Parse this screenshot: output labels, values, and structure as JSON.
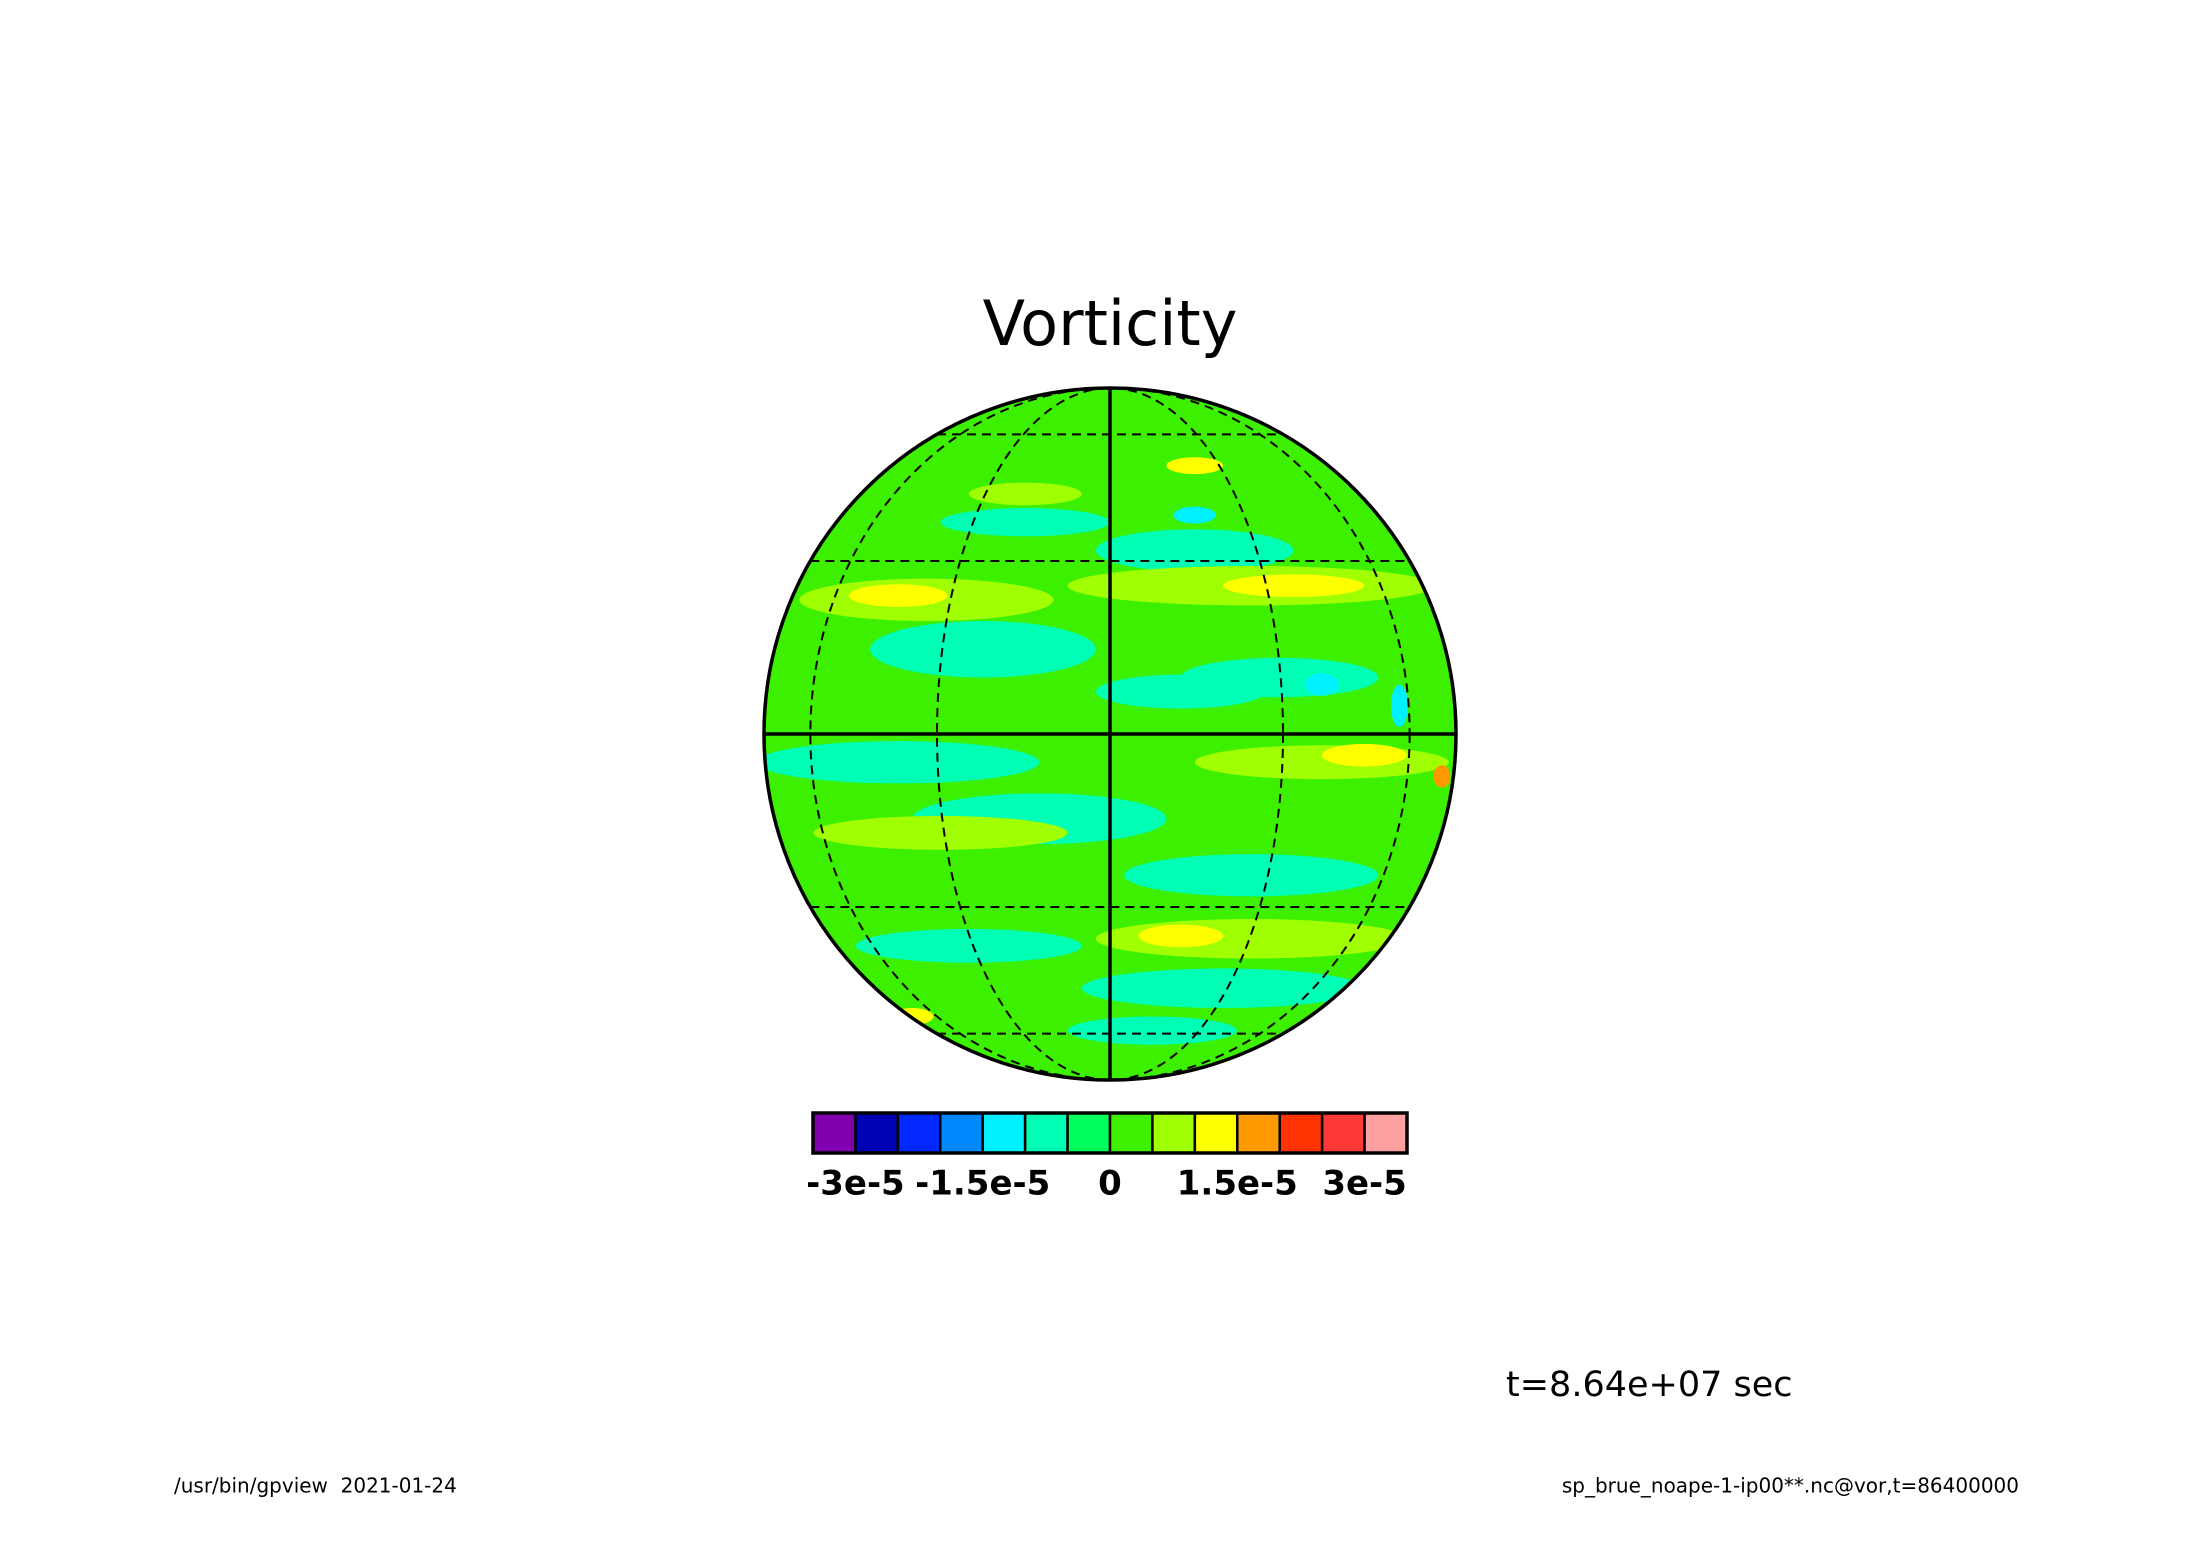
{
  "chart_data": {
    "type": "contour",
    "title": "Vorticity",
    "projection": "orthographic",
    "levels": [
      -3e-05,
      -2.5e-05,
      -2e-05,
      -1.5e-05,
      -1e-05,
      -5e-06,
      0,
      5e-06,
      1e-05,
      1.5e-05,
      2e-05,
      2.5e-05,
      3e-05
    ],
    "colors": [
      "#8000b0",
      "#0000b4",
      "#0028ff",
      "#0088ff",
      "#00f0ff",
      "#00ffb4",
      "#00ff5a",
      "#3cf000",
      "#a0ff00",
      "#ffff00",
      "#ff9900",
      "#ff3300",
      "#ff3838",
      "#ffa0a0"
    ],
    "colorbar_ticks": [
      {
        "value": -3e-05,
        "label": "-3e-5"
      },
      {
        "value": -1.5e-05,
        "label": "-1.5e-5"
      },
      0,
      {
        "value": 1.5e-05,
        "label": "1.5e-5"
      },
      {
        "value": 3e-05,
        "label": "3e-5"
      }
    ],
    "annotation": "t=8.64e+07 sec",
    "footer_left": "/usr/bin/gpview  2021-01-24",
    "footer_right": "sp_brue_noape-1-ip00**.nc@vor,t=86400000"
  }
}
